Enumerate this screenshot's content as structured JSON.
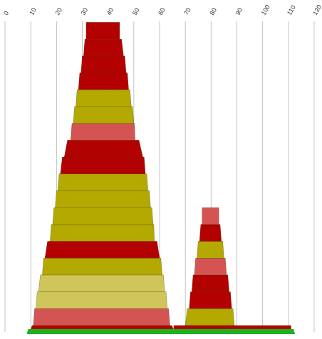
{
  "chart_data": {
    "type": "area",
    "title": "",
    "xlabel": "",
    "ylabel": "",
    "grid": true,
    "legend": "none",
    "x_ticks": [
      0,
      10,
      20,
      30,
      40,
      50,
      60,
      70,
      80,
      90,
      100,
      110,
      120
    ],
    "x_tick_labels": [
      "0",
      "10",
      "20",
      "30",
      "40",
      "50",
      "60",
      "70",
      "80",
      "90",
      "100",
      "110",
      "120"
    ],
    "xlim": [
      0,
      120
    ],
    "colors": {
      "red": "#b30000",
      "olive": "#b3a900",
      "pink": "#d45454",
      "lightolive": "#cfc55a",
      "green": "#20b020"
    },
    "stacks": [
      {
        "name": "left",
        "bands": [
          {
            "level": 0,
            "x0": 10.0,
            "x1": 65.5,
            "color": "red"
          },
          {
            "level": 1,
            "x0": 11.0,
            "x1": 64.0,
            "color": "pink"
          },
          {
            "level": 2,
            "x0": 12.0,
            "x1": 63.0,
            "color": "lightolive"
          },
          {
            "level": 3,
            "x0": 13.0,
            "x1": 62.0,
            "color": "lightolive"
          },
          {
            "level": 4,
            "x0": 14.5,
            "x1": 61.0,
            "color": "olive"
          },
          {
            "level": 5,
            "x0": 15.5,
            "x1": 60.0,
            "color": "red"
          },
          {
            "level": 6,
            "x0": 17.5,
            "x1": 58.0,
            "color": "olive"
          },
          {
            "level": 7,
            "x0": 18.5,
            "x1": 57.5,
            "color": "olive"
          },
          {
            "level": 8,
            "x0": 19.5,
            "x1": 56.5,
            "color": "olive"
          },
          {
            "level": 9,
            "x0": 20.5,
            "x1": 55.5,
            "color": "olive"
          },
          {
            "level": 10,
            "x0": 21.5,
            "x1": 54.5,
            "color": "red"
          },
          {
            "level": 11,
            "x0": 23.0,
            "x1": 53.5,
            "color": "red"
          },
          {
            "level": 12,
            "x0": 25.5,
            "x1": 50.5,
            "color": "pink"
          },
          {
            "level": 13,
            "x0": 26.5,
            "x1": 50.0,
            "color": "olive"
          },
          {
            "level": 14,
            "x0": 27.5,
            "x1": 49.0,
            "color": "olive"
          },
          {
            "level": 15,
            "x0": 28.5,
            "x1": 48.0,
            "color": "red"
          },
          {
            "level": 16,
            "x0": 29.5,
            "x1": 47.0,
            "color": "red"
          },
          {
            "level": 17,
            "x0": 30.5,
            "x1": 46.0,
            "color": "red"
          },
          {
            "level": 18,
            "x0": 31.5,
            "x1": 44.5,
            "color": "red"
          }
        ]
      },
      {
        "name": "right",
        "bands": [
          {
            "level": 1,
            "x0": 70.0,
            "x1": 89.0,
            "color": "olive"
          },
          {
            "level": 2,
            "x0": 71.5,
            "x1": 88.0,
            "color": "red"
          },
          {
            "level": 3,
            "x0": 72.5,
            "x1": 87.0,
            "color": "red"
          },
          {
            "level": 4,
            "x0": 73.5,
            "x1": 86.0,
            "color": "pink"
          },
          {
            "level": 5,
            "x0": 74.5,
            "x1": 85.0,
            "color": "olive"
          },
          {
            "level": 6,
            "x0": 75.5,
            "x1": 84.0,
            "color": "red"
          },
          {
            "level": 7,
            "x0": 76.5,
            "x1": 83.0,
            "color": "pink"
          }
        ]
      },
      {
        "name": "base",
        "bands": [
          {
            "level": 0,
            "x0": 65.5,
            "x1": 111.0,
            "color": "red"
          }
        ]
      }
    ],
    "base_strip": {
      "x0": 9.0,
      "x1": 112.0,
      "color": "green"
    }
  }
}
